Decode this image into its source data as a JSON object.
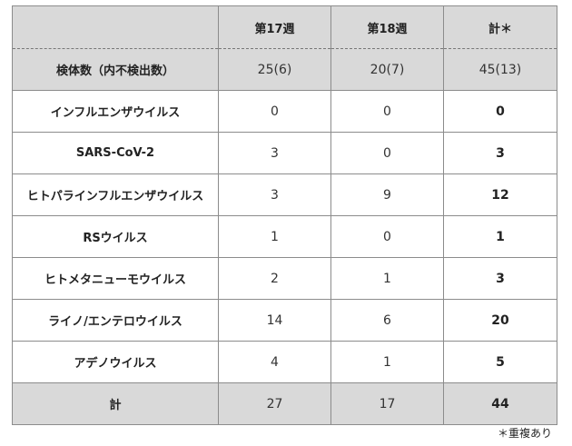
{
  "table": {
    "columns": [
      "",
      "第17週",
      "第18週",
      "計＊"
    ],
    "sample_row": {
      "label": "検体数（内不検出数）",
      "week17": "25(6)",
      "week18": "20(7)",
      "total": "45(13)"
    },
    "rows": [
      {
        "label": "インフルエンザウイルス",
        "week17": "0",
        "week18": "0",
        "total": "0"
      },
      {
        "label": "SARS-CoV-2",
        "week17": "3",
        "week18": "0",
        "total": "3"
      },
      {
        "label": "ヒトパラインフルエンザウイルス",
        "week17": "3",
        "week18": "9",
        "total": "12"
      },
      {
        "label": "RSウイルス",
        "week17": "1",
        "week18": "0",
        "total": "1"
      },
      {
        "label": "ヒトメタニューモウイルス",
        "week17": "2",
        "week18": "1",
        "total": "3"
      },
      {
        "label": "ライノ/エンテロウイルス",
        "week17": "14",
        "week18": "6",
        "total": "20"
      },
      {
        "label": "アデノウイルス",
        "week17": "4",
        "week18": "1",
        "total": "5"
      }
    ],
    "total_row": {
      "label": "計",
      "week17": "27",
      "week18": "17",
      "total": "44"
    }
  },
  "footnote": "＊重複あり"
}
